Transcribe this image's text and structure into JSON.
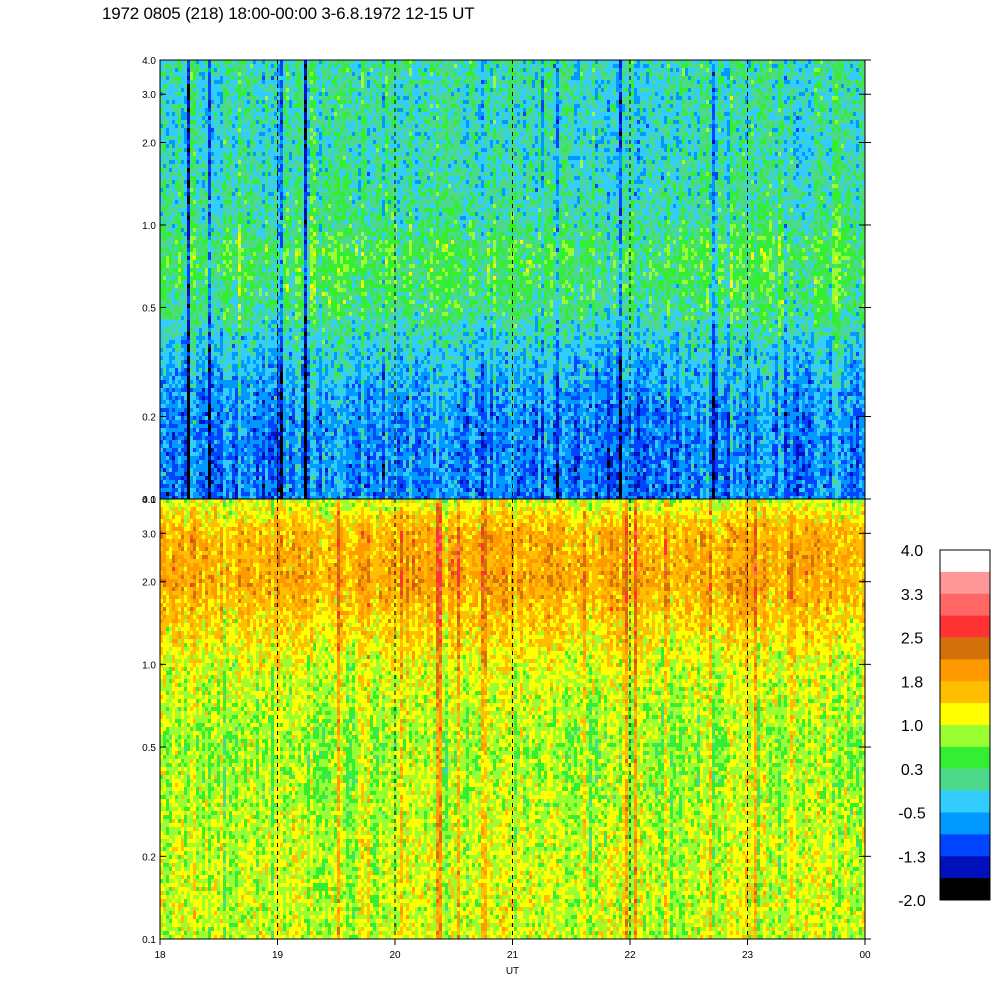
{
  "chart_data": {
    "type": "heatmap",
    "title": "1972 0805 (218) 18:00-00:00 3-6.8.1972  12-15 UT",
    "xlabel": "UT",
    "x_tick_labels": [
      "18",
      "19",
      "20",
      "21",
      "22",
      "23",
      "00"
    ],
    "x_range_hours": [
      18,
      24
    ],
    "dashed_hour_lines": [
      19,
      20,
      21,
      22,
      23
    ],
    "y_scale": "log",
    "y_range": [
      0.1,
      4.0
    ],
    "y_tick_labels": [
      "0.1",
      "0.2",
      "0.5",
      "1.0",
      "2.0",
      "3.0",
      "4.0"
    ],
    "panels": [
      {
        "name": "upper",
        "dominant_levels": [
          "-0.5",
          "0.3"
        ],
        "profile_by_y": [
          {
            "y": 0.1,
            "level": -0.8
          },
          {
            "y": 0.2,
            "level": -0.7
          },
          {
            "y": 0.35,
            "level": -0.3
          },
          {
            "y": 0.5,
            "level": 0.2
          },
          {
            "y": 0.8,
            "level": 0.4
          },
          {
            "y": 1.0,
            "level": 0.1
          },
          {
            "y": 2.0,
            "level": -0.1
          },
          {
            "y": 4.0,
            "level": 0.0
          }
        ]
      },
      {
        "name": "lower",
        "dominant_levels": [
          "1.0",
          "1.8"
        ],
        "profile_by_y": [
          {
            "y": 0.1,
            "level": 1.0
          },
          {
            "y": 0.2,
            "level": 1.0
          },
          {
            "y": 0.5,
            "level": 0.8
          },
          {
            "y": 1.0,
            "level": 1.1
          },
          {
            "y": 2.0,
            "level": 1.8
          },
          {
            "y": 3.0,
            "level": 1.7
          },
          {
            "y": 4.0,
            "level": 1.0
          }
        ]
      }
    ],
    "colorbar": {
      "tick_labels": [
        "4.0",
        "3.3",
        "2.5",
        "1.8",
        "1.0",
        "0.3",
        "-0.5",
        "-1.3",
        "-2.0"
      ],
      "range": [
        -2.0,
        4.0
      ],
      "colors_top_to_bottom": [
        "#ffffff",
        "#ff9999",
        "#ff6666",
        "#ff3333",
        "#d4700a",
        "#ff9900",
        "#ffbf00",
        "#ffff00",
        "#99ff33",
        "#33ee33",
        "#4dd98c",
        "#33ccff",
        "#0099ff",
        "#0044ff",
        "#0011bb",
        "#000000"
      ]
    }
  }
}
